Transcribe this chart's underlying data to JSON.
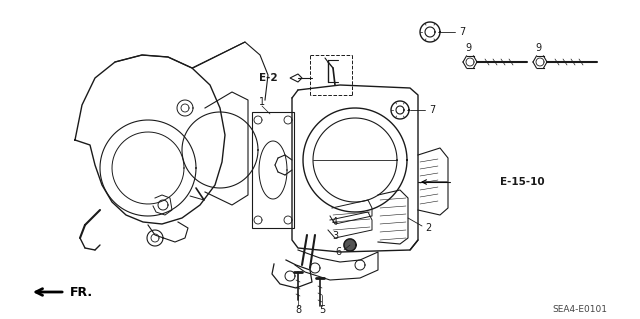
{
  "bg_color": "#ffffff",
  "line_color": "#1a1a1a",
  "figsize": [
    6.4,
    3.19
  ],
  "dpi": 100,
  "diagram_code": "SEA4-E0101"
}
